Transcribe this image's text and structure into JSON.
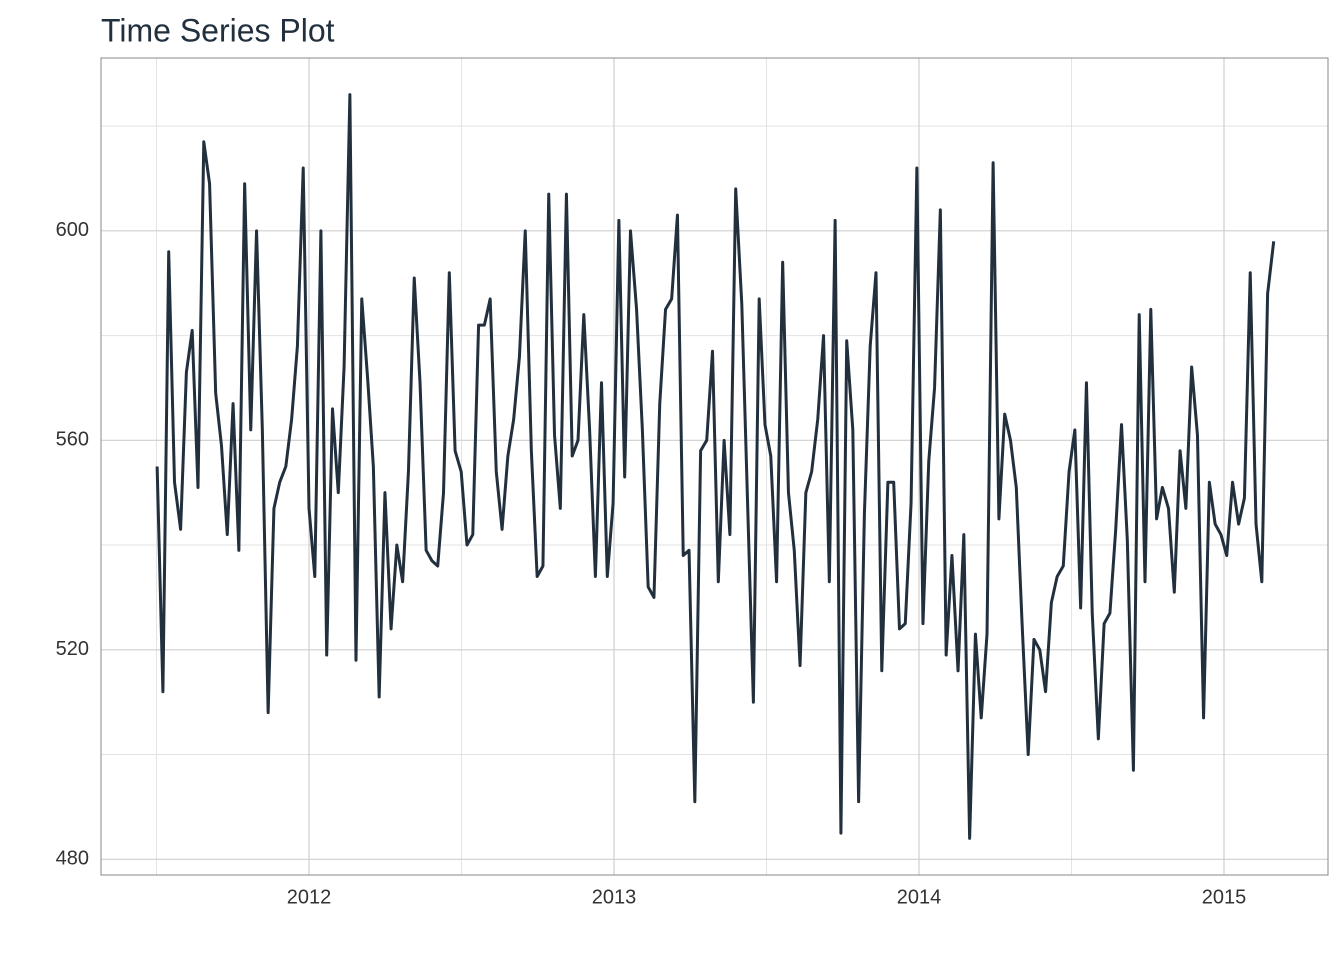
{
  "chart_data": {
    "type": "line",
    "title": "Time Series Plot",
    "x": [
      2011.502,
      2011.521,
      2011.54,
      2011.559,
      2011.579,
      2011.598,
      2011.617,
      2011.636,
      2011.655,
      2011.674,
      2011.694,
      2011.713,
      2011.732,
      2011.751,
      2011.77,
      2011.789,
      2011.809,
      2011.828,
      2011.847,
      2011.866,
      2011.885,
      2011.904,
      2011.924,
      2011.943,
      2011.962,
      2011.981,
      2012.0,
      2012.019,
      2012.039,
      2012.058,
      2012.077,
      2012.096,
      2012.115,
      2012.134,
      2012.154,
      2012.173,
      2012.192,
      2012.211,
      2012.23,
      2012.249,
      2012.269,
      2012.288,
      2012.307,
      2012.326,
      2012.345,
      2012.364,
      2012.384,
      2012.403,
      2012.422,
      2012.441,
      2012.46,
      2012.479,
      2012.499,
      2012.518,
      2012.537,
      2012.556,
      2012.575,
      2012.594,
      2012.614,
      2012.633,
      2012.652,
      2012.671,
      2012.69,
      2012.709,
      2012.729,
      2012.748,
      2012.767,
      2012.786,
      2012.805,
      2012.824,
      2012.844,
      2012.863,
      2012.882,
      2012.901,
      2012.92,
      2012.939,
      2012.959,
      2012.978,
      2012.997,
      2013.016,
      2013.035,
      2013.054,
      2013.074,
      2013.093,
      2013.112,
      2013.131,
      2013.15,
      2013.169,
      2013.189,
      2013.208,
      2013.227,
      2013.246,
      2013.265,
      2013.284,
      2013.304,
      2013.323,
      2013.342,
      2013.361,
      2013.38,
      2013.399,
      2013.419,
      2013.438,
      2013.457,
      2013.476,
      2013.495,
      2013.514,
      2013.533,
      2013.553,
      2013.572,
      2013.591,
      2013.61,
      2013.629,
      2013.648,
      2013.668,
      2013.687,
      2013.706,
      2013.725,
      2013.744,
      2013.763,
      2013.783,
      2013.802,
      2013.821,
      2013.84,
      2013.859,
      2013.878,
      2013.898,
      2013.917,
      2013.936,
      2013.955,
      2013.974,
      2013.993,
      2014.013,
      2014.032,
      2014.051,
      2014.07,
      2014.089,
      2014.108,
      2014.128,
      2014.147,
      2014.166,
      2014.185,
      2014.204,
      2014.223,
      2014.243,
      2014.262,
      2014.281,
      2014.3,
      2014.319,
      2014.338,
      2014.358,
      2014.377,
      2014.396,
      2014.415,
      2014.434,
      2014.453,
      2014.473,
      2014.492,
      2014.511,
      2014.53,
      2014.549,
      2014.568,
      2014.588,
      2014.607,
      2014.626,
      2014.645,
      2014.664,
      2014.683,
      2014.703,
      2014.722,
      2014.741,
      2014.76,
      2014.779,
      2014.798,
      2014.818,
      2014.837,
      2014.856,
      2014.875,
      2014.894,
      2014.913,
      2014.933,
      2014.952,
      2014.971,
      2014.99,
      2015.009,
      2015.028,
      2015.048,
      2015.067,
      2015.086,
      2015.105,
      2015.124,
      2015.143,
      2015.163
    ],
    "series": [
      {
        "color": "#22303e",
        "values": [
          555,
          512,
          596,
          552,
          543,
          573,
          581,
          551,
          617,
          609,
          569,
          559,
          542,
          567,
          539,
          609,
          562,
          600,
          562,
          508,
          547,
          552,
          555,
          564,
          578,
          612,
          547,
          534,
          600,
          519,
          566,
          550,
          574,
          626,
          518,
          587,
          572,
          555,
          511,
          550,
          524,
          540,
          533,
          554,
          591,
          571,
          539,
          537,
          536,
          550,
          592,
          558,
          554,
          540,
          542,
          582,
          582,
          587,
          554,
          543,
          557,
          564,
          576,
          600,
          558,
          534,
          536,
          607,
          561,
          547,
          607,
          557,
          560,
          584,
          562,
          534,
          571,
          534,
          548,
          602,
          553,
          600,
          585,
          562,
          532,
          530,
          567,
          585,
          587,
          603,
          538,
          539,
          491,
          558,
          560,
          577,
          533,
          560,
          542,
          608,
          586,
          548,
          510,
          587,
          563,
          557,
          533,
          594,
          550,
          539,
          517,
          550,
          554,
          564,
          580,
          533,
          602,
          485,
          579,
          562,
          491,
          546,
          578,
          592,
          516,
          552,
          552,
          524,
          525,
          548,
          612,
          525,
          556,
          570,
          604,
          519,
          538,
          516,
          542,
          484,
          523,
          507,
          523,
          613,
          545,
          565,
          560,
          551,
          525,
          500,
          522,
          520,
          512,
          529,
          534,
          536,
          554,
          562,
          528,
          571,
          527,
          503,
          525,
          527,
          543,
          563,
          541,
          497,
          584,
          533,
          585,
          545,
          551,
          547,
          531,
          558,
          547,
          574,
          561,
          507,
          552,
          544,
          542,
          538,
          552,
          544,
          549,
          592,
          544,
          533,
          588,
          598
        ]
      }
    ],
    "xlim": [
      2011.318,
      2015.341
    ],
    "xticks": [
      2012,
      2013,
      2014,
      2015
    ],
    "ylim": [
      477,
      633
    ],
    "yticks": [
      480,
      520,
      560,
      600
    ],
    "grid": true
  }
}
